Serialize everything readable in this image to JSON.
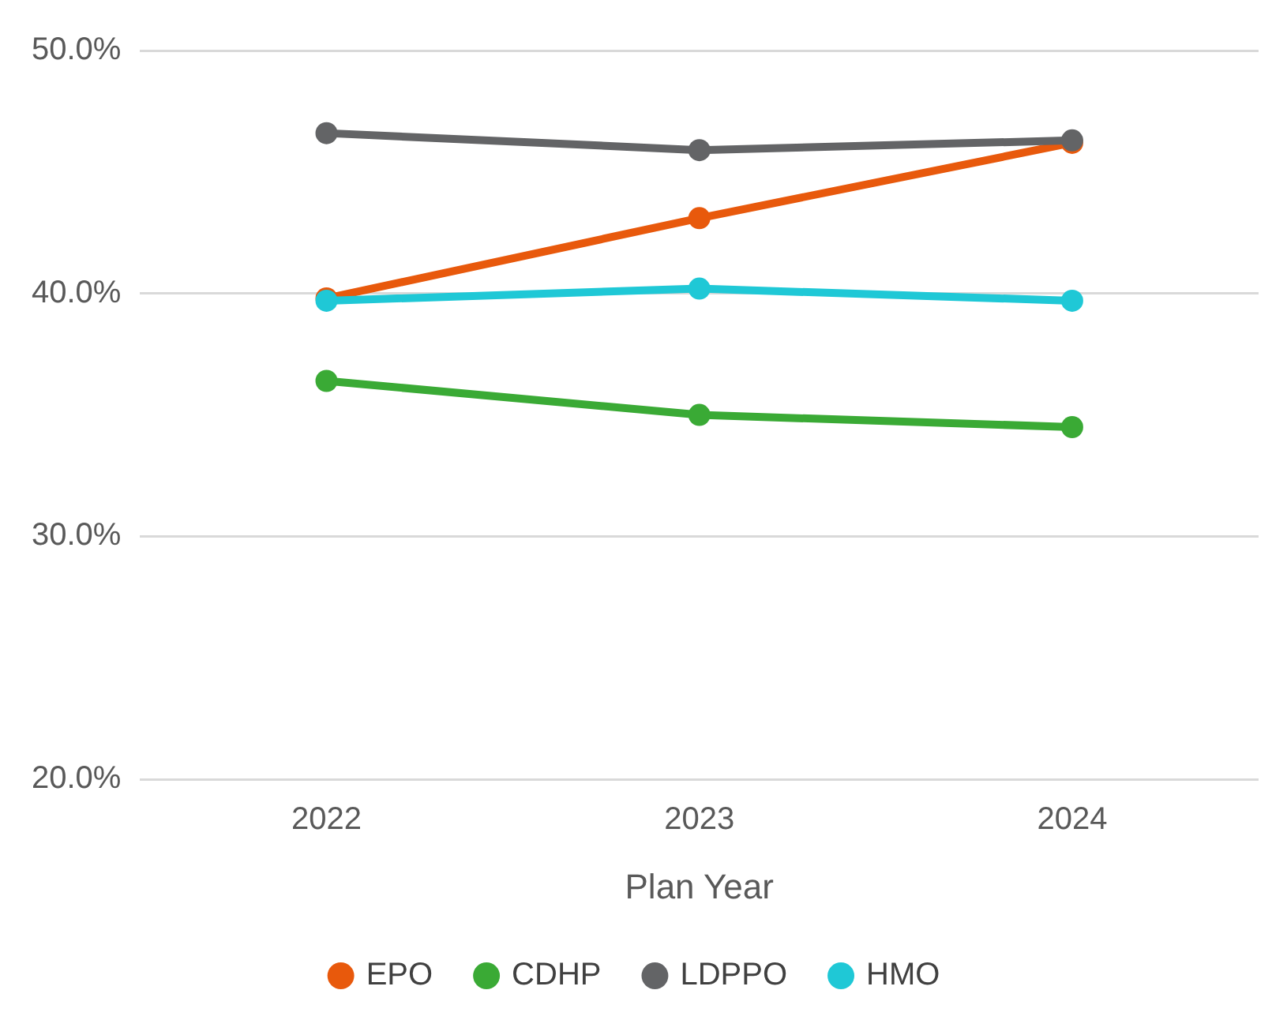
{
  "chart_data": {
    "type": "line",
    "xlabel": "Plan Year",
    "categories": [
      "2022",
      "2023",
      "2024"
    ],
    "series": [
      {
        "name": "EPO",
        "color": "#e8590c",
        "values": [
          39.8,
          43.1,
          46.2
        ]
      },
      {
        "name": "CDHP",
        "color": "#3aaa35",
        "values": [
          36.4,
          35.0,
          34.5
        ]
      },
      {
        "name": "LDPPO",
        "color": "#636466",
        "values": [
          46.6,
          45.9,
          46.3
        ]
      },
      {
        "name": "HMO",
        "color": "#1fc8d6",
        "values": [
          39.7,
          40.2,
          39.7
        ]
      }
    ],
    "ylim": [
      20,
      50
    ],
    "yticks": [
      {
        "value": 20,
        "label": "20.0%"
      },
      {
        "value": 30,
        "label": "30.0%"
      },
      {
        "value": 40,
        "label": "40.0%"
      },
      {
        "value": 50,
        "label": "50.0%"
      }
    ],
    "grid": "y",
    "legend": "bottom",
    "marker": "circle",
    "line_style": "solid"
  }
}
